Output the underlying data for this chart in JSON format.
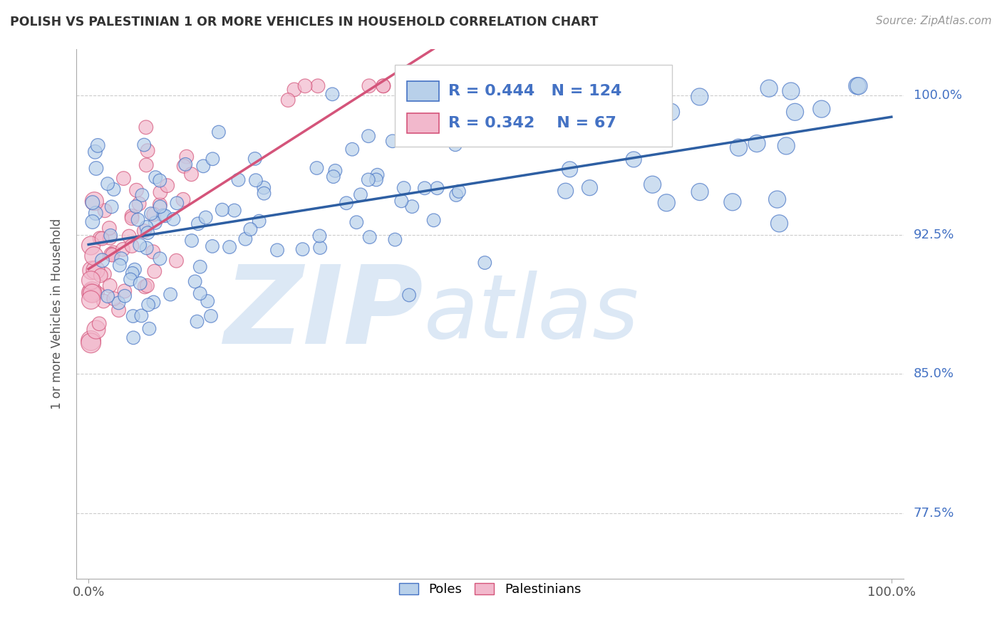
{
  "title": "POLISH VS PALESTINIAN 1 OR MORE VEHICLES IN HOUSEHOLD CORRELATION CHART",
  "source": "Source: ZipAtlas.com",
  "ylabel": "1 or more Vehicles in Household",
  "legend_entries": [
    "Poles",
    "Palestinians"
  ],
  "legend_r": [
    "0.444",
    "0.342"
  ],
  "legend_n": [
    "124",
    "67"
  ],
  "poles_color": "#b8d0ea",
  "poles_edge_color": "#4472c4",
  "palestinians_color": "#f2b8cc",
  "palestinians_edge_color": "#d4547a",
  "poles_line_color": "#2e5fa3",
  "palestinians_line_color": "#d4547a",
  "background_color": "#ffffff",
  "ytick_color": "#4472c4",
  "title_color": "#333333",
  "source_color": "#999999",
  "grid_color": "#cccccc",
  "watermark_color": "#dce8f5",
  "yticks": [
    0.775,
    0.85,
    0.925,
    1.0
  ],
  "ytick_labels": [
    "77.5%",
    "85.0%",
    "92.5%",
    "100.0%"
  ],
  "xlim": [
    0.0,
    1.0
  ],
  "ylim": [
    0.74,
    1.025
  ]
}
